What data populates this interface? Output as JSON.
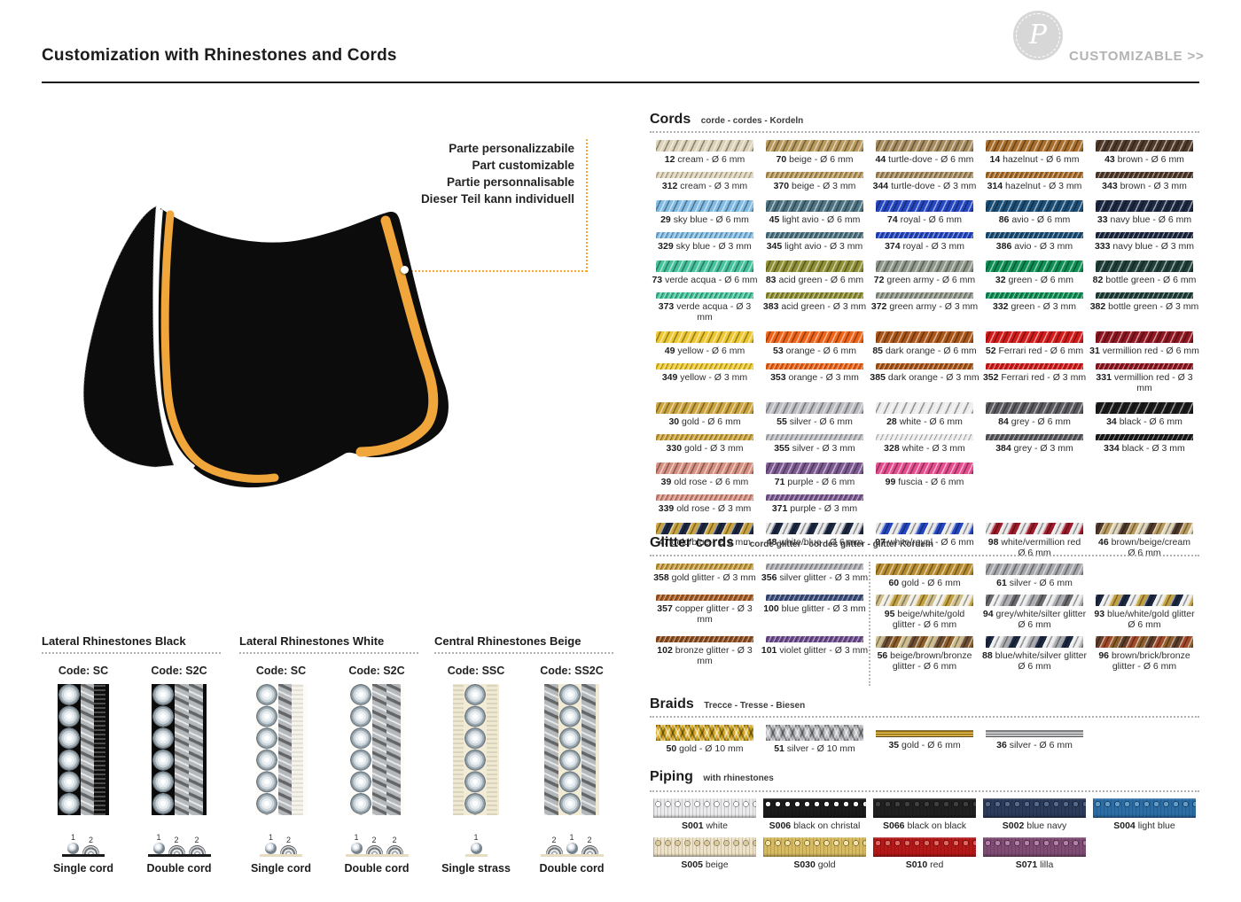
{
  "page": {
    "title": "Customization with Rhinestones and Cords",
    "brand_letter": "P",
    "customizable_label": "CUSTOMIZABLE >>",
    "accent_gold": "#f0a63a",
    "pad_black": "#0c0c0c"
  },
  "annotation": {
    "lines": [
      "Parte personalizzabile",
      "Part customizable",
      "Partie personnalisable",
      "Dieser Teil kann individuell"
    ]
  },
  "cords": {
    "title": "Cords",
    "subtitle": "corde - cordes - Kordeln",
    "rows": [
      {
        "kind": "r6",
        "items": [
          {
            "code": "12",
            "label": "cream - Ø 6 mm",
            "colors": [
              "#dcd2b8"
            ]
          },
          {
            "code": "70",
            "label": "beige - Ø 6 mm",
            "colors": [
              "#b99a5e"
            ]
          },
          {
            "code": "44",
            "label": "turtle-dove - Ø 6 mm",
            "colors": [
              "#a78c60"
            ]
          },
          {
            "code": "14",
            "label": "hazelnut - Ø 6 mm",
            "colors": [
              "#a96e2c"
            ]
          },
          {
            "code": "43",
            "label": "brown - Ø 6 mm",
            "colors": [
              "#503a2b"
            ]
          }
        ]
      },
      {
        "kind": "r3",
        "items": [
          {
            "code": "312",
            "label": "cream - Ø 3 mm",
            "colors": [
              "#dcd2b8"
            ],
            "thin": true
          },
          {
            "code": "370",
            "label": "beige - Ø 3 mm",
            "colors": [
              "#b99a5e"
            ],
            "thin": true
          },
          {
            "code": "344",
            "label": "turtle-dove - Ø 3 mm",
            "colors": [
              "#a78c60"
            ],
            "thin": true
          },
          {
            "code": "314",
            "label": "hazelnut - Ø 3 mm",
            "colors": [
              "#a96e2c"
            ],
            "thin": true
          },
          {
            "code": "343",
            "label": "brown - Ø 3 mm",
            "colors": [
              "#503a2b"
            ],
            "thin": true
          }
        ]
      },
      {
        "kind": "r6",
        "items": [
          {
            "code": "29",
            "label": "sky blue - Ø 6 mm",
            "colors": [
              "#82bce4"
            ]
          },
          {
            "code": "45",
            "label": "light avio - Ø 6 mm",
            "colors": [
              "#4f7584"
            ]
          },
          {
            "code": "74",
            "label": "royal - Ø 6 mm",
            "colors": [
              "#2547c1"
            ]
          },
          {
            "code": "86",
            "label": "avio - Ø 6 mm",
            "colors": [
              "#1c4f78"
            ]
          },
          {
            "code": "33",
            "label": "navy blue - Ø 6 mm",
            "colors": [
              "#1d2942"
            ]
          }
        ]
      },
      {
        "kind": "r3",
        "items": [
          {
            "code": "329",
            "label": "sky blue - Ø 3 mm",
            "colors": [
              "#82bce4"
            ],
            "thin": true
          },
          {
            "code": "345",
            "label": "light avio - Ø 3 mm",
            "colors": [
              "#4f7584"
            ],
            "thin": true
          },
          {
            "code": "374",
            "label": "royal - Ø 3 mm",
            "colors": [
              "#2547c1"
            ],
            "thin": true
          },
          {
            "code": "386",
            "label": "avio - Ø 3 mm",
            "colors": [
              "#1c4f78"
            ],
            "thin": true
          },
          {
            "code": "333",
            "label": "navy blue - Ø 3 mm",
            "colors": [
              "#1d2942"
            ],
            "thin": true
          }
        ]
      },
      {
        "kind": "r6",
        "items": [
          {
            "code": "73",
            "label": "verde acqua - Ø 6 mm",
            "colors": [
              "#46c39c"
            ]
          },
          {
            "code": "83",
            "label": "acid green - Ø 6 mm",
            "colors": [
              "#8f9036"
            ]
          },
          {
            "code": "72",
            "label": "green army - Ø 6 mm",
            "colors": [
              "#8f988a"
            ]
          },
          {
            "code": "32",
            "label": "green - Ø 6 mm",
            "colors": [
              "#0e8f55"
            ]
          },
          {
            "code": "82",
            "label": "bottle green - Ø 6 mm",
            "colors": [
              "#22403a"
            ]
          }
        ]
      },
      {
        "kind": "r3",
        "items": [
          {
            "code": "373",
            "label": "verde acqua - Ø 3 mm",
            "colors": [
              "#46c39c"
            ],
            "thin": true
          },
          {
            "code": "383",
            "label": "acid green - Ø 3 mm",
            "colors": [
              "#8f9036"
            ],
            "thin": true
          },
          {
            "code": "372",
            "label": "green army - Ø 3 mm",
            "colors": [
              "#8f988a"
            ],
            "thin": true
          },
          {
            "code": "332",
            "label": "green - Ø 3 mm",
            "colors": [
              "#0e8f55"
            ],
            "thin": true
          },
          {
            "code": "382",
            "label": "bottle green - Ø 3 mm",
            "colors": [
              "#22403a"
            ],
            "thin": true
          }
        ]
      },
      {
        "kind": "r6",
        "items": [
          {
            "code": "49",
            "label": "yellow - Ø 6 mm",
            "colors": [
              "#eec832"
            ]
          },
          {
            "code": "53",
            "label": "orange - Ø 6 mm",
            "colors": [
              "#ee6418"
            ]
          },
          {
            "code": "85",
            "label": "dark orange - Ø 6 mm",
            "colors": [
              "#aa5619"
            ]
          },
          {
            "code": "52",
            "label": "Ferrari red - Ø 6 mm",
            "colors": [
              "#d21b1b"
            ]
          },
          {
            "code": "31",
            "label": "vermillion red - Ø 6 mm",
            "colors": [
              "#8e1620"
            ]
          }
        ]
      },
      {
        "kind": "r3",
        "items": [
          {
            "code": "349",
            "label": "yellow - Ø 3 mm",
            "colors": [
              "#eec832"
            ],
            "thin": true
          },
          {
            "code": "353",
            "label": "orange - Ø 3 mm",
            "colors": [
              "#ee6418"
            ],
            "thin": true
          },
          {
            "code": "385",
            "label": "dark orange - Ø 3 mm",
            "colors": [
              "#aa5619"
            ],
            "thin": true
          },
          {
            "code": "352",
            "label": "Ferrari red - Ø 3 mm",
            "colors": [
              "#d21b1b"
            ],
            "thin": true
          },
          {
            "code": "331",
            "label": "vermillion red - Ø 3 mm",
            "colors": [
              "#8e1620"
            ],
            "thin": true
          }
        ]
      },
      {
        "kind": "r6",
        "items": [
          {
            "code": "30",
            "label": "gold - Ø 6 mm",
            "colors": [
              "#cba43f"
            ]
          },
          {
            "code": "55",
            "label": "silver - Ø 6 mm",
            "colors": [
              "#bcbdc1"
            ]
          },
          {
            "code": "28",
            "label": "white - Ø 6 mm",
            "colors": [
              "#ebebeb"
            ]
          },
          {
            "code": "84",
            "label": "grey - Ø 6 mm",
            "colors": [
              "#5c5c60"
            ]
          },
          {
            "code": "34",
            "label": "black - Ø 6 mm",
            "colors": [
              "#1b1b1b"
            ]
          }
        ]
      },
      {
        "kind": "r3",
        "items": [
          {
            "code": "330",
            "label": "gold - Ø 3 mm",
            "colors": [
              "#cba43f"
            ],
            "thin": true
          },
          {
            "code": "355",
            "label": "silver - Ø 3 mm",
            "colors": [
              "#bcbdc1"
            ],
            "thin": true
          },
          {
            "code": "328",
            "label": "white - Ø 3 mm",
            "colors": [
              "#ebebeb"
            ],
            "thin": true
          },
          {
            "code": "384",
            "label": "grey -  Ø 3 mm",
            "colors": [
              "#5c5c60"
            ],
            "thin": true
          },
          {
            "code": "334",
            "label": "black -  Ø 3 mm",
            "colors": [
              "#1b1b1b"
            ],
            "thin": true
          }
        ]
      },
      {
        "kind": "r6",
        "items": [
          {
            "code": "39",
            "label": "old rose -  Ø 6 mm",
            "colors": [
              "#d69082"
            ]
          },
          {
            "code": "71",
            "label": "purple - Ø 6 mm",
            "colors": [
              "#7d5b92"
            ]
          },
          {
            "code": "99",
            "label": "fuscia -  Ø 6 mm",
            "colors": [
              "#e44e8e"
            ]
          },
          null,
          null
        ]
      },
      {
        "kind": "r3",
        "items": [
          {
            "code": "339",
            "label": "old rose -  Ø 3 mm",
            "colors": [
              "#d69082"
            ],
            "thin": true
          },
          {
            "code": "371",
            "label": "purple - Ø 3 mm",
            "colors": [
              "#7d5b92"
            ],
            "thin": true
          },
          null,
          null,
          null
        ]
      },
      {
        "kind": "rg",
        "items": [
          {
            "code": "47",
            "label": "gold/blue - Ø 6 mm",
            "colors": [
              "#cba43f",
              "#1d2942"
            ]
          },
          {
            "code": "48",
            "label": "white/blue - Ø 6 mm",
            "colors": [
              "#e9e9e9",
              "#1d2942"
            ]
          },
          {
            "code": "97",
            "label": "white/royal - Ø 6 mm",
            "colors": [
              "#e9e9e9",
              "#2547c1"
            ]
          },
          {
            "code": "98",
            "label": "white/vermillion red\nØ 6 mm",
            "colors": [
              "#e9e9e9",
              "#9e1b2a"
            ]
          },
          {
            "code": "46",
            "label": "brown/beige/cream\nØ 6 mm",
            "colors": [
              "#503a2b",
              "#b99a5e",
              "#e0d6ba"
            ]
          }
        ]
      }
    ]
  },
  "glitter": {
    "title": "Glitter cords",
    "subtitle": "- corde glitter - cordes glitter - glitter Kordeln",
    "rows": [
      {
        "kind": "rg",
        "items": [
          {
            "code": "358",
            "label": "gold glitter - Ø 3 mm",
            "colors": [
              "#c59d40"
            ],
            "thin": true
          },
          {
            "code": "356",
            "label": "silver glitter - Ø 3 mm",
            "colors": [
              "#abacb0"
            ],
            "thin": true
          },
          {
            "code": "60",
            "label": "gold - Ø 6 mm",
            "colors": [
              "#b78c30"
            ]
          },
          {
            "code": "61",
            "label": "silver -  Ø 6 mm",
            "colors": [
              "#a7a8ac"
            ]
          },
          null
        ]
      },
      {
        "kind": "rg",
        "items": [
          {
            "code": "357",
            "label": "copper glitter - Ø 3 mm",
            "colors": [
              "#a75d26"
            ],
            "thin": true
          },
          {
            "code": "100",
            "label": "blue glitter - Ø 3 mm",
            "colors": [
              "#3f507f"
            ],
            "thin": true
          },
          {
            "code": "95",
            "label": "beige/white/gold\nglitter - Ø 6 mm",
            "colors": [
              "#cfbf8e",
              "#f1eee3",
              "#c4a242"
            ]
          },
          {
            "code": "94",
            "label": "grey/white/silter glitter\nØ 6 mm",
            "colors": [
              "#6c6c70",
              "#eeeeee",
              "#abacb0"
            ]
          },
          {
            "code": "93",
            "label": "blue/white/gold glitter\nØ 6 mm",
            "colors": [
              "#1d2942",
              "#eeeeee",
              "#c4a242"
            ]
          }
        ]
      },
      {
        "kind": "rg",
        "items": [
          {
            "code": "102",
            "label": "bronze glitter - Ø 3 mm",
            "colors": [
              "#8f5024"
            ],
            "thin": true
          },
          {
            "code": "101",
            "label": "violet glitter - Ø 3 mm",
            "colors": [
              "#6f4f8f"
            ],
            "thin": true
          },
          {
            "code": "56",
            "label": "beige/brown/bronze\nglitter - Ø 6 mm",
            "colors": [
              "#cfbf8e",
              "#6f4f32",
              "#8f5f2c"
            ]
          },
          {
            "code": "88",
            "label": "blue/white/silver glitter\nØ 6 mm",
            "colors": [
              "#1d2942",
              "#eeeeee",
              "#abacb0"
            ]
          },
          {
            "code": "96",
            "label": "brown/brick/bronze\nglitter - Ø 6 mm",
            "colors": [
              "#5f3f2c",
              "#a34a2a",
              "#8f5f2c"
            ]
          }
        ]
      }
    ]
  },
  "braids": {
    "title": "Braids",
    "subtitle": "Trecce - Tresse - Biesen",
    "rows": [
      {
        "kind": "rg",
        "items": [
          {
            "code": "50",
            "label": "gold - Ø 10 mm",
            "colors": [
              "#d5a81f"
            ],
            "style": "braid"
          },
          {
            "code": "51",
            "label": "silver - Ø 10 mm",
            "colors": [
              "#b3b4b8"
            ],
            "style": "braid"
          },
          {
            "code": "35",
            "label": "gold - Ø 6 mm",
            "colors": [
              "#c99a1e"
            ],
            "style": "flat"
          },
          {
            "code": "36",
            "label": "silver - Ø 6 mm",
            "colors": [
              "#b7b8bc"
            ],
            "style": "flat"
          },
          null
        ]
      }
    ]
  },
  "piping": {
    "title": "Piping",
    "subtitle": "with rhinestones",
    "rows": [
      [
        {
          "code": "S001",
          "label": "white",
          "base": "#ebebed",
          "dot": "#ffffff"
        },
        {
          "code": "S006",
          "label": "black on christal",
          "base": "#1b1b1b",
          "dot": "#f2f2f2"
        },
        {
          "code": "S066",
          "label": "black on black",
          "base": "#202020",
          "dot": "#3f3f3f"
        },
        {
          "code": "S002",
          "label": "blue navy",
          "base": "#2b3b59",
          "dot": "#54688a"
        },
        {
          "code": "S004",
          "label": "light blue",
          "base": "#2d6da3",
          "dot": "#5f9cc9"
        }
      ],
      [
        {
          "code": "S005",
          "label": "beige",
          "base": "#eee3c8",
          "dot": "#dcca9a"
        },
        {
          "code": "S030",
          "label": "gold",
          "base": "#d7bb64",
          "dot": "#f2e2a4"
        },
        {
          "code": "S010",
          "label": "red",
          "base": "#b21a1a",
          "dot": "#e2635f"
        },
        {
          "code": "S071",
          "label": "lilla",
          "base": "#7f4d74",
          "dot": "#b37fa9"
        },
        null
      ]
    ]
  },
  "panels": [
    {
      "title": "Lateral Rhinestones Black",
      "columns": [
        {
          "code": "Code: SC",
          "strip": "sc-black",
          "label": "Single cord",
          "base": "dark",
          "diagram": [
            {
              "n": "1",
              "t": "gem"
            },
            {
              "n": "2",
              "t": "arch"
            }
          ]
        },
        {
          "code": "Code: S2C",
          "strip": "s2c-black",
          "label": "Double cord",
          "base": "dark",
          "diagram": [
            {
              "n": "1",
              "t": "gem"
            },
            {
              "n": "2",
              "t": "arch"
            },
            {
              "n": "2",
              "t": "arch"
            }
          ]
        }
      ]
    },
    {
      "title": "Lateral Rhinestones White",
      "columns": [
        {
          "code": "Code: SC",
          "strip": "sc-white",
          "label": "Single cord",
          "base": "light",
          "diagram": [
            {
              "n": "1",
              "t": "gem"
            },
            {
              "n": "2",
              "t": "arch"
            }
          ]
        },
        {
          "code": "Code: S2C",
          "strip": "s2c-white",
          "label": "Double cord",
          "base": "light",
          "diagram": [
            {
              "n": "1",
              "t": "gem"
            },
            {
              "n": "2",
              "t": "arch"
            },
            {
              "n": "2",
              "t": "arch"
            }
          ]
        }
      ]
    },
    {
      "title": "Central Rhinestones Beige",
      "columns": [
        {
          "code": "Code: SSC",
          "strip": "ssc-beige",
          "label": "Single strass",
          "base": "light",
          "diagram": [
            {
              "n": "1",
              "t": "gem"
            }
          ]
        },
        {
          "code": "Code: SS2C",
          "strip": "ss2c-beige",
          "label": "Double cord",
          "base": "light",
          "diagram": [
            {
              "n": "2",
              "t": "arch"
            },
            {
              "n": "1",
              "t": "gem"
            },
            {
              "n": "2",
              "t": "arch"
            }
          ]
        }
      ]
    }
  ]
}
